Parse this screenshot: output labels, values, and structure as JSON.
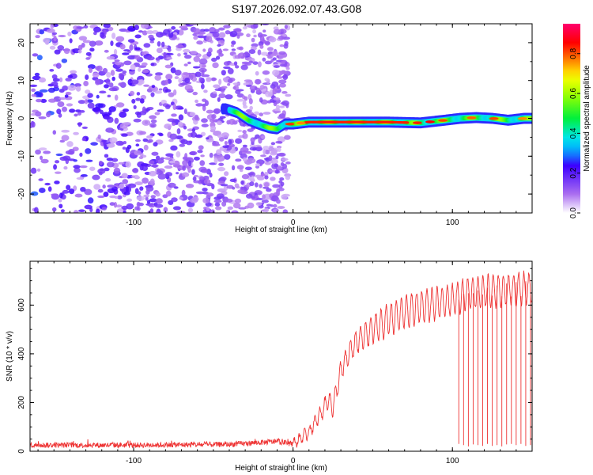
{
  "title": "S197.2026.092.07.43.G08",
  "chart_data": [
    {
      "type": "heatmap",
      "name": "spectrogram",
      "xlabel": "Height of straight line (km)",
      "ylabel": "Frequency (Hz)",
      "xlim": [
        -165,
        150
      ],
      "ylim": [
        -25,
        25
      ],
      "xticks": [
        -100,
        0,
        100
      ],
      "yticks": [
        -20,
        -10,
        0,
        10,
        20
      ],
      "noise_x_range": [
        -165,
        -3
      ],
      "signal_path": {
        "x": [
          -42,
          -35,
          -28,
          -20,
          -15,
          -10,
          -5,
          0,
          10,
          30,
          60,
          80,
          95,
          105,
          115,
          125,
          135,
          145,
          150
        ],
        "freq": [
          2.5,
          1.5,
          -0.5,
          -1.8,
          -2.5,
          -2.8,
          -1.5,
          -1.5,
          -1.0,
          -1.0,
          -1.0,
          -1.2,
          -0.5,
          0.0,
          0.2,
          0.0,
          -0.5,
          0.0,
          0.0
        ]
      },
      "colorbar": {
        "label": "Normalized spectral amplitude",
        "range": [
          0,
          0.95
        ],
        "ticks": [
          "0.0",
          "0.2",
          "0.4",
          "0.6",
          "0.8"
        ],
        "tick_values": [
          0.0,
          0.2,
          0.4,
          0.6,
          0.8
        ]
      }
    },
    {
      "type": "line",
      "name": "snr",
      "xlabel": "Height of straight line (km)",
      "ylabel": "SNR (10 * v/v)",
      "xlim": [
        -165,
        150
      ],
      "ylim": [
        0,
        780
      ],
      "xticks": [
        -100,
        0,
        100
      ],
      "yticks": [
        0,
        200,
        400,
        600
      ],
      "color": "#ee3333",
      "profile": {
        "x": [
          -165,
          -100,
          -40,
          -10,
          0,
          10,
          18,
          22,
          25,
          30,
          35,
          40,
          50,
          60,
          70,
          80,
          90,
          100,
          110,
          130,
          150
        ],
        "snr": [
          25,
          25,
          28,
          40,
          30,
          80,
          160,
          215,
          180,
          330,
          400,
          450,
          500,
          540,
          570,
          595,
          605,
          620,
          650,
          660,
          670
        ]
      },
      "oscillation": {
        "amplitude_min": 15,
        "amplitude_max": 65,
        "period_km": 3.2
      },
      "dropouts": {
        "x": [
          104,
          107,
          110,
          113,
          116,
          119,
          122,
          125,
          128,
          131,
          134,
          137,
          140,
          143,
          146,
          149
        ],
        "snr": [
          30,
          25,
          20,
          28,
          25,
          22,
          30,
          22,
          25,
          20,
          28,
          30,
          25,
          30,
          22,
          25
        ]
      }
    }
  ]
}
